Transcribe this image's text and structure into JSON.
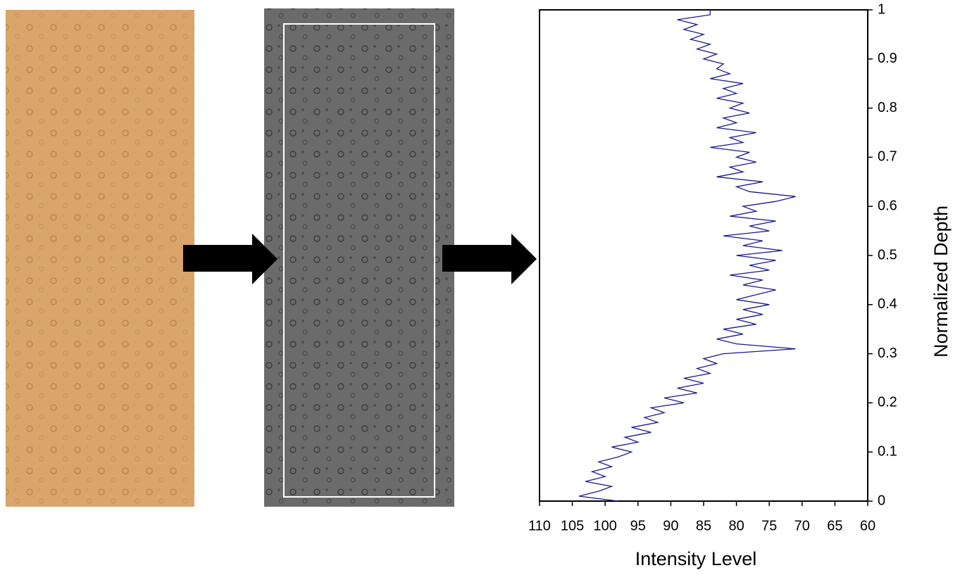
{
  "chart_data": {
    "type": "line",
    "xlabel": "Normalized Depth",
    "ylabel": "Intensity Level",
    "x": [
      0,
      0.01,
      0.02,
      0.03,
      0.04,
      0.05,
      0.06,
      0.07,
      0.08,
      0.09,
      0.1,
      0.11,
      0.12,
      0.13,
      0.14,
      0.15,
      0.16,
      0.17,
      0.18,
      0.19,
      0.2,
      0.21,
      0.22,
      0.23,
      0.24,
      0.25,
      0.26,
      0.27,
      0.28,
      0.29,
      0.3,
      0.31,
      0.32,
      0.33,
      0.34,
      0.35,
      0.36,
      0.37,
      0.38,
      0.39,
      0.4,
      0.41,
      0.42,
      0.43,
      0.44,
      0.45,
      0.46,
      0.47,
      0.48,
      0.49,
      0.5,
      0.51,
      0.52,
      0.53,
      0.54,
      0.55,
      0.56,
      0.57,
      0.58,
      0.59,
      0.6,
      0.61,
      0.62,
      0.63,
      0.64,
      0.65,
      0.66,
      0.67,
      0.68,
      0.69,
      0.7,
      0.71,
      0.72,
      0.73,
      0.74,
      0.75,
      0.76,
      0.77,
      0.78,
      0.79,
      0.8,
      0.81,
      0.82,
      0.83,
      0.84,
      0.85,
      0.86,
      0.87,
      0.88,
      0.89,
      0.9,
      0.91,
      0.92,
      0.93,
      0.94,
      0.95,
      0.96,
      0.97,
      0.98,
      0.99,
      1
    ],
    "values": [
      98,
      104,
      101,
      99,
      103,
      100,
      102,
      99,
      101,
      98,
      96,
      99,
      95,
      97,
      93,
      96,
      92,
      94,
      91,
      93,
      88,
      91,
      86,
      89,
      85,
      88,
      84,
      86,
      83,
      85,
      82,
      71,
      80,
      83,
      79,
      82,
      77,
      80,
      76,
      79,
      75,
      80,
      77,
      74,
      79,
      76,
      81,
      75,
      78,
      74,
      80,
      73,
      79,
      76,
      82,
      75,
      78,
      74,
      81,
      77,
      79,
      74,
      71,
      78,
      80,
      76,
      83,
      79,
      81,
      77,
      80,
      78,
      84,
      79,
      81,
      77,
      83,
      80,
      82,
      78,
      81,
      79,
      83,
      80,
      82,
      79,
      84,
      81,
      83,
      82,
      85,
      83,
      86,
      84,
      87,
      85,
      88,
      86,
      89,
      84,
      84
    ],
    "color": "#1a1a8c",
    "xlim": [
      0,
      1
    ],
    "xticks": [
      0,
      0.1,
      0.2,
      0.3,
      0.4,
      0.5,
      0.6,
      0.7,
      0.8,
      0.9,
      1
    ],
    "ylim": [
      110,
      60
    ],
    "yticks": [
      110,
      105,
      100,
      95,
      90,
      85,
      80,
      75,
      70,
      65,
      60
    ]
  }
}
